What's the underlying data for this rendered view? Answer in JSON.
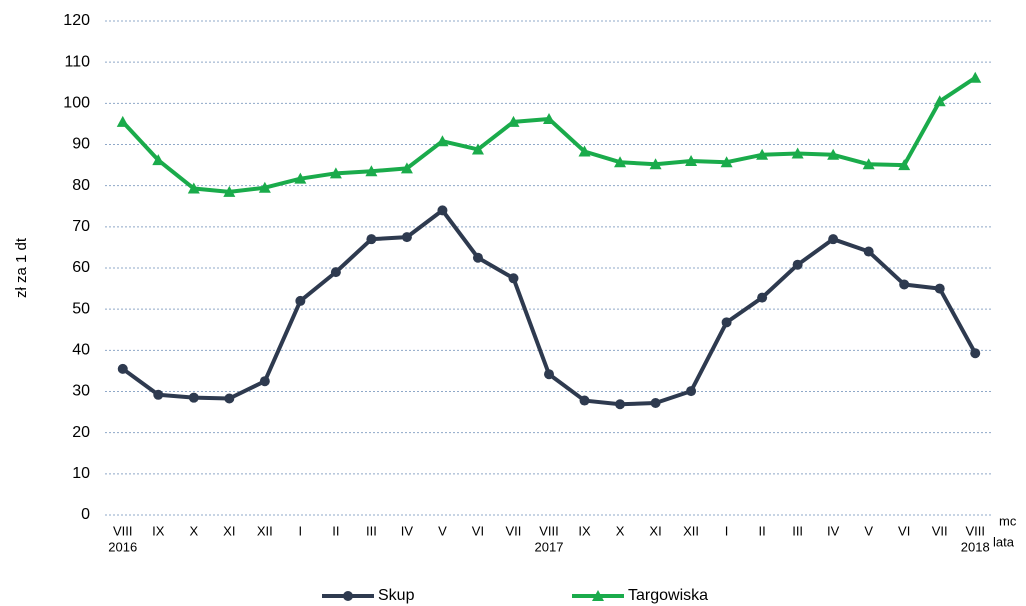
{
  "chart_data": {
    "type": "line",
    "ylabel": "zł za 1 dt",
    "xlabel": "mc",
    "xlabel2": "lata",
    "categories": [
      "VIII",
      "IX",
      "X",
      "XI",
      "XII",
      "I",
      "II",
      "III",
      "IV",
      "V",
      "VI",
      "VII",
      "VIII",
      "IX",
      "X",
      "XI",
      "XII",
      "I",
      "II",
      "III",
      "IV",
      "V",
      "VI",
      "VII",
      "VIII"
    ],
    "category_years": [
      "2016",
      null,
      null,
      null,
      null,
      null,
      null,
      null,
      null,
      null,
      null,
      null,
      "2017",
      null,
      null,
      null,
      null,
      null,
      null,
      null,
      null,
      null,
      null,
      null,
      "2018"
    ],
    "series": [
      {
        "name": "Skup",
        "color": "#2e3a4f",
        "marker": "circle",
        "values": [
          35.5,
          29.2,
          28.5,
          28.3,
          32.5,
          52,
          59,
          67,
          67.5,
          74,
          62.5,
          57.5,
          34.2,
          27.8,
          26.9,
          27.2,
          30.1,
          46.8,
          52.8,
          60.8,
          67,
          64,
          56,
          55,
          39.3
        ]
      },
      {
        "name": "Targowiska",
        "color": "#1aab4b",
        "marker": "triangle",
        "values": [
          95.5,
          86.2,
          79.3,
          78.5,
          79.5,
          81.7,
          83,
          83.5,
          84.2,
          90.8,
          88.8,
          95.5,
          96.2,
          88.3,
          85.7,
          85.2,
          86,
          85.7,
          87.5,
          87.8,
          87.5,
          85.2,
          85,
          100.5,
          106.2
        ]
      }
    ],
    "ylim": [
      0,
      120
    ],
    "yticks": [
      0,
      10,
      20,
      30,
      40,
      50,
      60,
      70,
      80,
      90,
      100,
      110,
      120
    ],
    "grid": true
  }
}
